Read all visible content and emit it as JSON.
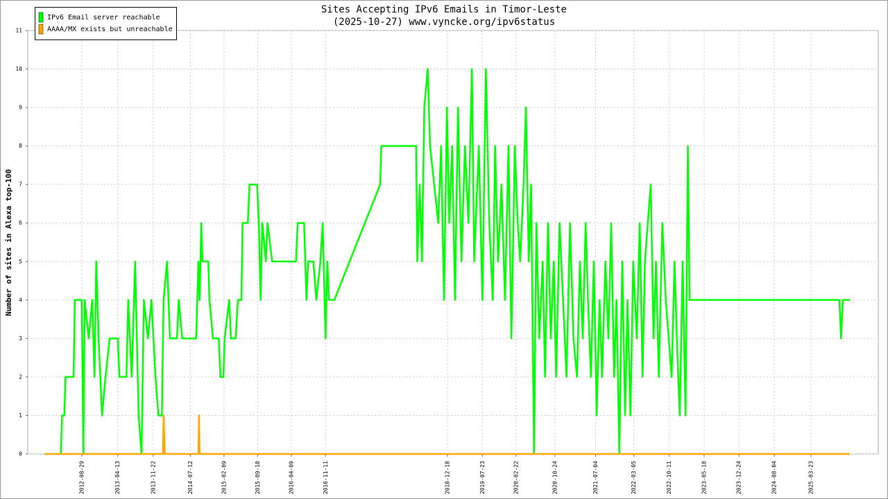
{
  "chart_data": {
    "type": "line",
    "title": "Sites Accepting IPv6 Emails in Timor-Leste",
    "subtitle": "(2025-10-27) www.vyncke.org/ipv6status",
    "y_label": "Number of sites in Alexa top-100",
    "xlim": [
      2011.73,
      2026.38
    ],
    "xticks": [
      {
        "value": 2012.66,
        "label": "2012-08-29"
      },
      {
        "value": 2013.28,
        "label": "2013-04-13"
      },
      {
        "value": 2013.89,
        "label": "2013-11-22"
      },
      {
        "value": 2014.53,
        "label": "2014-07-12"
      },
      {
        "value": 2015.11,
        "label": "2015-02-09"
      },
      {
        "value": 2015.69,
        "label": "2015-09-10"
      },
      {
        "value": 2016.27,
        "label": "2016-04-09"
      },
      {
        "value": 2016.86,
        "label": "2016-11-11"
      },
      {
        "value": 2018.96,
        "label": "2018-12-18"
      },
      {
        "value": 2019.56,
        "label": "2019-07-23"
      },
      {
        "value": 2020.14,
        "label": "2020-02-22"
      },
      {
        "value": 2020.81,
        "label": "2020-10-24"
      },
      {
        "value": 2021.51,
        "label": "2021-07-04"
      },
      {
        "value": 2022.17,
        "label": "2022-03-05"
      },
      {
        "value": 2022.78,
        "label": "2022-10-11"
      },
      {
        "value": 2023.38,
        "label": "2023-05-18"
      },
      {
        "value": 2023.98,
        "label": "2023-12-24"
      },
      {
        "value": 2024.59,
        "label": "2024-08-04"
      },
      {
        "value": 2025.22,
        "label": "2025-03-23"
      }
    ],
    "ylim": [
      0,
      11
    ],
    "yticks": [
      0,
      1,
      2,
      3,
      4,
      5,
      6,
      7,
      8,
      9,
      10,
      11
    ],
    "grid": true,
    "legend": "top-left",
    "series": [
      {
        "name": "IPv6 Email server reachable",
        "color": "#00ff00",
        "x": [
          2012.3,
          2012.32,
          2012.36,
          2012.38,
          2012.52,
          2012.54,
          2012.66,
          2012.69,
          2012.71,
          2012.78,
          2012.84,
          2012.88,
          2012.91,
          2012.95,
          2013.01,
          2013.07,
          2013.14,
          2013.28,
          2013.31,
          2013.43,
          2013.46,
          2013.52,
          2013.58,
          2013.64,
          2013.69,
          2013.73,
          2013.8,
          2013.86,
          2013.93,
          2013.98,
          2014.04,
          2014.07,
          2014.13,
          2014.18,
          2014.3,
          2014.33,
          2014.39,
          2014.63,
          2014.67,
          2014.69,
          2014.72,
          2014.74,
          2014.84,
          2014.86,
          2014.92,
          2015.02,
          2015.05,
          2015.1,
          2015.12,
          2015.2,
          2015.23,
          2015.31,
          2015.35,
          2015.41,
          2015.43,
          2015.52,
          2015.55,
          2015.68,
          2015.71,
          2015.74,
          2015.77,
          2015.83,
          2015.86,
          2015.94,
          2016.35,
          2016.38,
          2016.49,
          2016.53,
          2016.56,
          2016.65,
          2016.7,
          2016.77,
          2016.81,
          2016.86,
          2016.89,
          2016.92,
          2017.01,
          2017.8,
          2017.82,
          2018.42,
          2018.44,
          2018.48,
          2018.52,
          2018.56,
          2018.62,
          2018.66,
          2018.8,
          2018.85,
          2018.9,
          2018.95,
          2018.99,
          2019.04,
          2019.09,
          2019.14,
          2019.2,
          2019.26,
          2019.32,
          2019.38,
          2019.42,
          2019.5,
          2019.56,
          2019.62,
          2019.68,
          2019.74,
          2019.78,
          2019.83,
          2019.89,
          2019.95,
          2020.01,
          2020.06,
          2020.12,
          2020.17,
          2020.21,
          2020.27,
          2020.31,
          2020.36,
          2020.4,
          2020.45,
          2020.49,
          2020.54,
          2020.6,
          2020.64,
          2020.69,
          2020.74,
          2020.79,
          2020.83,
          2020.89,
          2020.95,
          2021.01,
          2021.07,
          2021.13,
          2021.19,
          2021.24,
          2021.29,
          2021.34,
          2021.38,
          2021.43,
          2021.48,
          2021.53,
          2021.58,
          2021.62,
          2021.68,
          2021.73,
          2021.78,
          2021.83,
          2021.87,
          2021.92,
          2021.97,
          2022.02,
          2022.06,
          2022.11,
          2022.16,
          2022.22,
          2022.27,
          2022.32,
          2022.36,
          2022.41,
          2022.46,
          2022.51,
          2022.55,
          2022.6,
          2022.66,
          2022.72,
          2022.77,
          2022.82,
          2022.87,
          2022.91,
          2022.96,
          2023.01,
          2023.06,
          2023.1,
          2023.13,
          2023.15,
          2025.71,
          2025.74,
          2025.77,
          2025.89
        ],
        "values": [
          0,
          1,
          1,
          2,
          2,
          4,
          4,
          0,
          4,
          3,
          4,
          2,
          5,
          3,
          1,
          2,
          3,
          3,
          2,
          2,
          4,
          2,
          5,
          1,
          0,
          4,
          3,
          4,
          2,
          1,
          1,
          4,
          5,
          3,
          3,
          4,
          3,
          3,
          5,
          4,
          6,
          5,
          5,
          4,
          3,
          3,
          2,
          2,
          3,
          4,
          3,
          3,
          4,
          4,
          6,
          6,
          7,
          7,
          6,
          4,
          6,
          5,
          6,
          5,
          5,
          6,
          6,
          4,
          5,
          5,
          4,
          5,
          6,
          3,
          5,
          4,
          4,
          7,
          8,
          8,
          5,
          7,
          5,
          9,
          10,
          8,
          6,
          8,
          4,
          9,
          6,
          8,
          4,
          9,
          5,
          8,
          6,
          10,
          5,
          8,
          4,
          10,
          6,
          4,
          8,
          5,
          7,
          4,
          8,
          3,
          8,
          6,
          5,
          7,
          9,
          5,
          7,
          0,
          6,
          3,
          5,
          2,
          6,
          3,
          5,
          2,
          6,
          4,
          2,
          6,
          3,
          2,
          5,
          3,
          6,
          4,
          2,
          5,
          1,
          4,
          2,
          5,
          3,
          6,
          2,
          4,
          0,
          5,
          1,
          4,
          1,
          5,
          3,
          6,
          2,
          5,
          6,
          7,
          3,
          5,
          2,
          6,
          4,
          3,
          2,
          5,
          3,
          1,
          5,
          1,
          8,
          4,
          4,
          4,
          3,
          4,
          4
        ]
      },
      {
        "name": "AAAA/MX exists but unreachable",
        "color": "#ffa500",
        "x": [
          2012.02,
          2014.06,
          2014.07,
          2014.09,
          2014.67,
          2014.68,
          2014.69,
          2025.89
        ],
        "values": [
          0,
          0,
          1,
          0,
          0,
          1,
          0,
          0
        ]
      }
    ]
  }
}
